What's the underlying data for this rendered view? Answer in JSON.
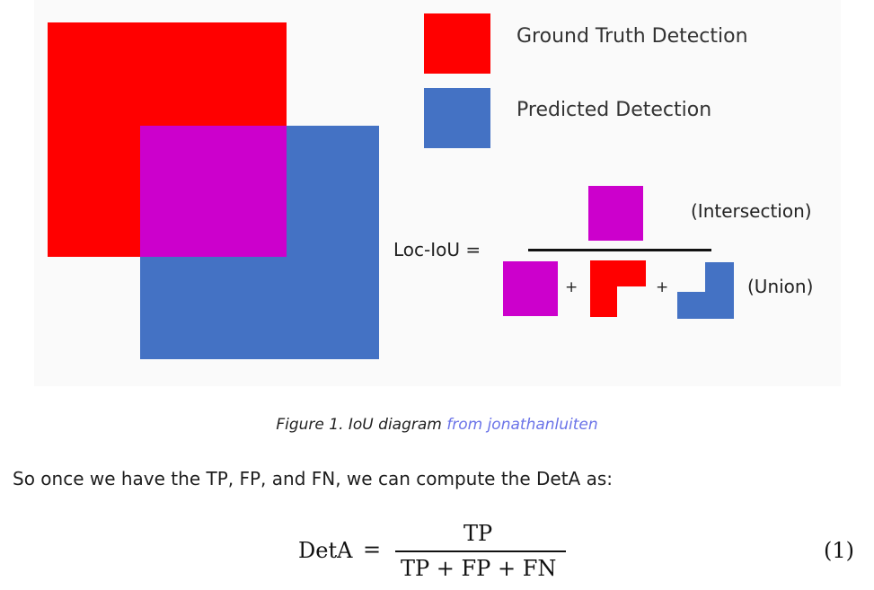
{
  "figure": {
    "legend": [
      {
        "label": "Ground Truth Detection",
        "color": "#ff0000"
      },
      {
        "label": "Predicted Detection",
        "color": "#4472c4"
      }
    ],
    "overlap_color": "#cc00cc",
    "formula": {
      "lhs": "Loc-IoU =",
      "plus": "+",
      "numerator_label": "(Intersection)",
      "denominator_label": "(Union)"
    }
  },
  "caption": {
    "text": "Figure 1. IoU diagram ",
    "link_text": "from jonathanluiten"
  },
  "paragraph": "So once we have the TP, FP, and FN, we can compute the DetA as:",
  "equation": {
    "lhs": "DetA",
    "equals": "=",
    "numerator": "TP",
    "denominator": "TP + FP + FN",
    "number": "(1)"
  }
}
